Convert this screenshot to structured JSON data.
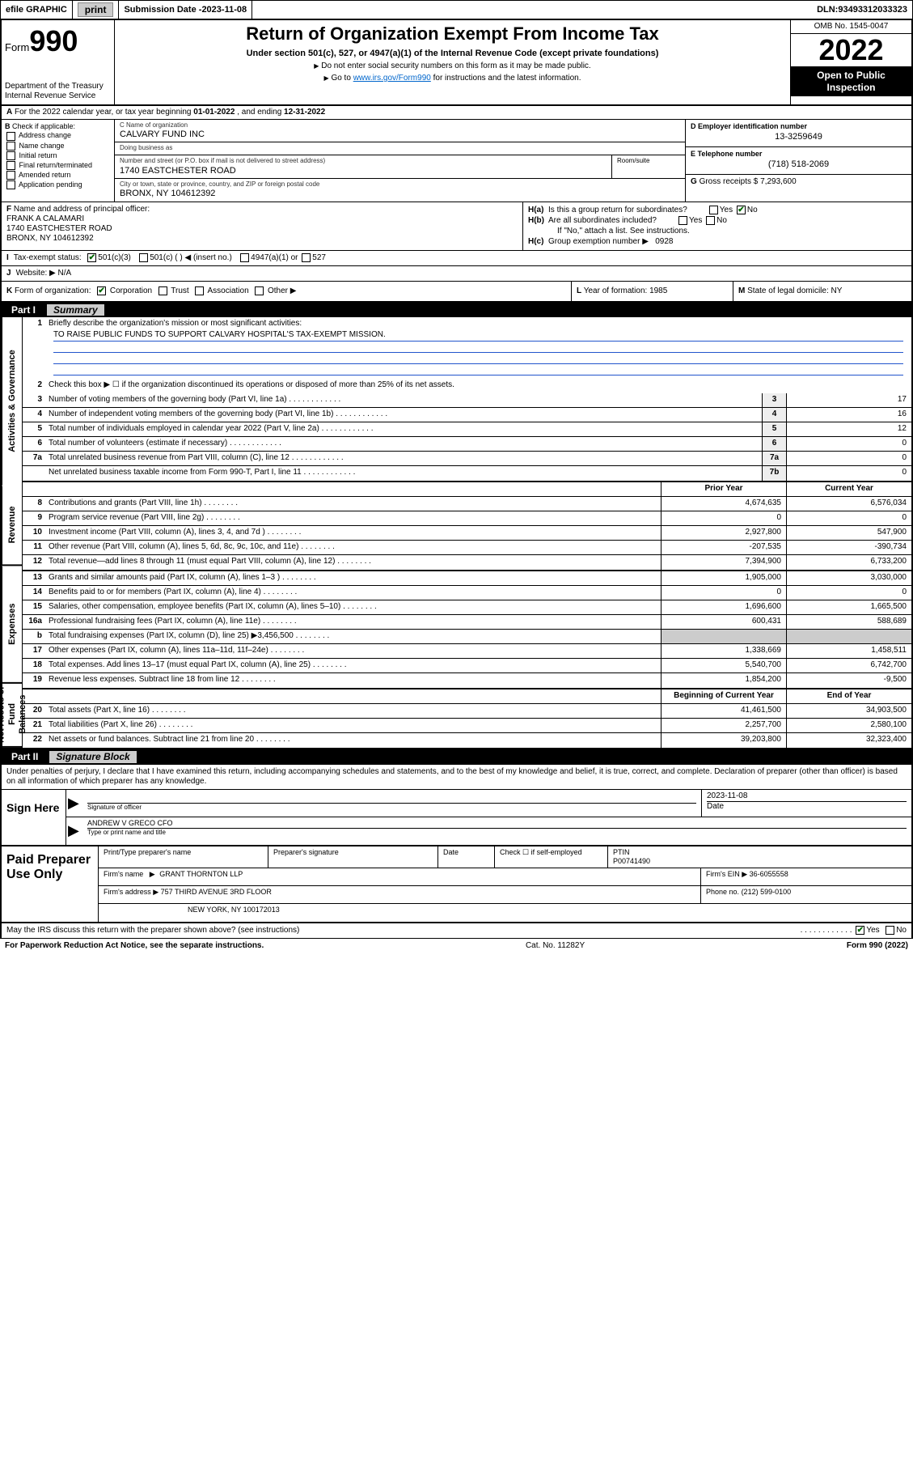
{
  "topbar": {
    "efile": "efile GRAPHIC",
    "print": "print",
    "subdate_label": "Submission Date - ",
    "subdate": "2023-11-08",
    "dln_label": "DLN: ",
    "dln": "93493312033323"
  },
  "header": {
    "form_prefix": "Form",
    "form_num": "990",
    "dept": "Department of the Treasury\nInternal Revenue Service",
    "title": "Return of Organization Exempt From Income Tax",
    "subtitle": "Under section 501(c), 527, or 4947(a)(1) of the Internal Revenue Code (except private foundations)",
    "note1": "Do not enter social security numbers on this form as it may be made public.",
    "note2_pre": "Go to ",
    "note2_link": "www.irs.gov/Form990",
    "note2_post": " for instructions and the latest information.",
    "omb": "OMB No. 1545-0047",
    "year": "2022",
    "open": "Open to Public Inspection"
  },
  "rowA": {
    "label": "A",
    "text_pre": "For the 2022 calendar year, or tax year beginning ",
    "begin": "01-01-2022",
    "mid": " , and ending ",
    "end": "12-31-2022"
  },
  "colB": {
    "label": "B",
    "heading": "Check if applicable:",
    "opts": [
      "Address change",
      "Name change",
      "Initial return",
      "Final return/terminated",
      "Amended return",
      "Application pending"
    ]
  },
  "colC": {
    "c_label": "C Name of organization",
    "c_name": "CALVARY FUND INC",
    "dba_label": "Doing business as",
    "dba": "",
    "addr_label": "Number and street (or P.O. box if mail is not delivered to street address)",
    "addr": "1740 EASTCHESTER ROAD",
    "suite_label": "Room/suite",
    "city_label": "City or town, state or province, country, and ZIP or foreign postal code",
    "city": "BRONX, NY  104612392"
  },
  "colD": {
    "d_label": "D Employer identification number",
    "ein": "13-3259649",
    "e_label": "E Telephone number",
    "phone": "(718) 518-2069",
    "g_label": "G",
    "g_text": "Gross receipts $ ",
    "g_val": "7,293,600"
  },
  "blockF": {
    "f_label": "F",
    "f_text": "Name and address of principal officer:",
    "officer": "FRANK A CALAMARI",
    "officer_addr1": "1740 EASTCHESTER ROAD",
    "officer_addr2": "BRONX, NY  104612392",
    "ha_label": "H(a)",
    "ha_text": "Is this a group return for subordinates?",
    "ha_yes": "Yes",
    "ha_no": "No",
    "hb_label": "H(b)",
    "hb_text": "Are all subordinates included?",
    "hb_note": "If \"No,\" attach a list. See instructions.",
    "hc_label": "H(c)",
    "hc_text": "Group exemption number ",
    "hc_val": "0928"
  },
  "rowI": {
    "label": "I",
    "text": "Tax-exempt status:",
    "opt1": "501(c)(3)",
    "opt2": "501(c) (    ) ◀ (insert no.)",
    "opt3": "4947(a)(1) or",
    "opt4": "527"
  },
  "rowJ": {
    "label": "J",
    "text": "Website: ▶",
    "val": "N/A"
  },
  "rowK": {
    "label": "K",
    "text": "Form of organization:",
    "opts": [
      "Corporation",
      "Trust",
      "Association",
      "Other ▶"
    ],
    "l_label": "L",
    "l_text": "Year of formation: ",
    "l_val": "1985",
    "m_label": "M",
    "m_text": "State of legal domicile: ",
    "m_val": "NY"
  },
  "part1": {
    "num": "Part I",
    "title": "Summary"
  },
  "vtabs": {
    "gov": "Activities & Governance",
    "rev": "Revenue",
    "exp": "Expenses",
    "net": "Net Assets or Fund Balances"
  },
  "p1": {
    "l1": "Briefly describe the organization's mission or most significant activities:",
    "mission": "TO RAISE PUBLIC FUNDS TO SUPPORT CALVARY HOSPITAL'S TAX-EXEMPT MISSION.",
    "l2": "Check this box ▶ ☐  if the organization discontinued its operations or disposed of more than 25% of its net assets.",
    "rows_gov": [
      {
        "n": "3",
        "d": "Number of voting members of the governing body (Part VI, line 1a)",
        "ln": "3",
        "v": "17"
      },
      {
        "n": "4",
        "d": "Number of independent voting members of the governing body (Part VI, line 1b)",
        "ln": "4",
        "v": "16"
      },
      {
        "n": "5",
        "d": "Total number of individuals employed in calendar year 2022 (Part V, line 2a)",
        "ln": "5",
        "v": "12"
      },
      {
        "n": "6",
        "d": "Total number of volunteers (estimate if necessary)",
        "ln": "6",
        "v": "0"
      },
      {
        "n": "7a",
        "d": "Total unrelated business revenue from Part VIII, column (C), line 12",
        "ln": "7a",
        "v": "0"
      },
      {
        "n": "",
        "d": "Net unrelated business taxable income from Form 990-T, Part I, line 11",
        "ln": "7b",
        "v": "0"
      }
    ],
    "hdr_prior": "Prior Year",
    "hdr_curr": "Current Year",
    "rows_rev": [
      {
        "n": "8",
        "d": "Contributions and grants (Part VIII, line 1h)",
        "p": "4,674,635",
        "c": "6,576,034"
      },
      {
        "n": "9",
        "d": "Program service revenue (Part VIII, line 2g)",
        "p": "0",
        "c": "0"
      },
      {
        "n": "10",
        "d": "Investment income (Part VIII, column (A), lines 3, 4, and 7d )",
        "p": "2,927,800",
        "c": "547,900"
      },
      {
        "n": "11",
        "d": "Other revenue (Part VIII, column (A), lines 5, 6d, 8c, 9c, 10c, and 11e)",
        "p": "-207,535",
        "c": "-390,734"
      },
      {
        "n": "12",
        "d": "Total revenue—add lines 8 through 11 (must equal Part VIII, column (A), line 12)",
        "p": "7,394,900",
        "c": "6,733,200"
      }
    ],
    "rows_exp": [
      {
        "n": "13",
        "d": "Grants and similar amounts paid (Part IX, column (A), lines 1–3 )",
        "p": "1,905,000",
        "c": "3,030,000"
      },
      {
        "n": "14",
        "d": "Benefits paid to or for members (Part IX, column (A), line 4)",
        "p": "0",
        "c": "0"
      },
      {
        "n": "15",
        "d": "Salaries, other compensation, employee benefits (Part IX, column (A), lines 5–10)",
        "p": "1,696,600",
        "c": "1,665,500"
      },
      {
        "n": "16a",
        "d": "Professional fundraising fees (Part IX, column (A), line 11e)",
        "p": "600,431",
        "c": "588,689"
      },
      {
        "n": "b",
        "d": "Total fundraising expenses (Part IX, column (D), line 25) ▶3,456,500",
        "p": "",
        "c": "",
        "gray": true
      },
      {
        "n": "17",
        "d": "Other expenses (Part IX, column (A), lines 11a–11d, 11f–24e)",
        "p": "1,338,669",
        "c": "1,458,511"
      },
      {
        "n": "18",
        "d": "Total expenses. Add lines 13–17 (must equal Part IX, column (A), line 25)",
        "p": "5,540,700",
        "c": "6,742,700"
      },
      {
        "n": "19",
        "d": "Revenue less expenses. Subtract line 18 from line 12",
        "p": "1,854,200",
        "c": "-9,500"
      }
    ],
    "hdr_beg": "Beginning of Current Year",
    "hdr_end": "End of Year",
    "rows_net": [
      {
        "n": "20",
        "d": "Total assets (Part X, line 16)",
        "p": "41,461,500",
        "c": "34,903,500"
      },
      {
        "n": "21",
        "d": "Total liabilities (Part X, line 26)",
        "p": "2,257,700",
        "c": "2,580,100"
      },
      {
        "n": "22",
        "d": "Net assets or fund balances. Subtract line 21 from line 20",
        "p": "39,203,800",
        "c": "32,323,400"
      }
    ]
  },
  "part2": {
    "num": "Part II",
    "title": "Signature Block"
  },
  "sig": {
    "intro": "Under penalties of perjury, I declare that I have examined this return, including accompanying schedules and statements, and to the best of my knowledge and belief, it is true, correct, and complete. Declaration of preparer (other than officer) is based on all information of which preparer has any knowledge.",
    "sign_here": "Sign Here",
    "sig_officer": "Signature of officer",
    "date_label": "Date",
    "date": "2023-11-08",
    "name": "ANDREW V GRECO CFO",
    "name_label": "Type or print name and title"
  },
  "paid": {
    "title": "Paid Preparer Use Only",
    "h_name": "Print/Type preparer's name",
    "h_sig": "Preparer's signature",
    "h_date": "Date",
    "h_check": "Check ☐ if self-employed",
    "h_ptin": "PTIN",
    "ptin": "P00741490",
    "firm_label": "Firm's name",
    "firm": "GRANT THORNTON LLP",
    "ein_label": "Firm's EIN ▶",
    "ein": "36-6055558",
    "addr_label": "Firm's address ▶",
    "addr1": "757 THIRD AVENUE 3RD FLOOR",
    "addr2": "NEW YORK, NY  100172013",
    "phone_label": "Phone no.",
    "phone": "(212) 599-0100"
  },
  "footer": {
    "q": "May the IRS discuss this return with the preparer shown above? (see instructions)",
    "yes": "Yes",
    "no": "No",
    "pra": "For Paperwork Reduction Act Notice, see the separate instructions.",
    "cat": "Cat. No. 11282Y",
    "form": "Form 990 (2022)"
  }
}
